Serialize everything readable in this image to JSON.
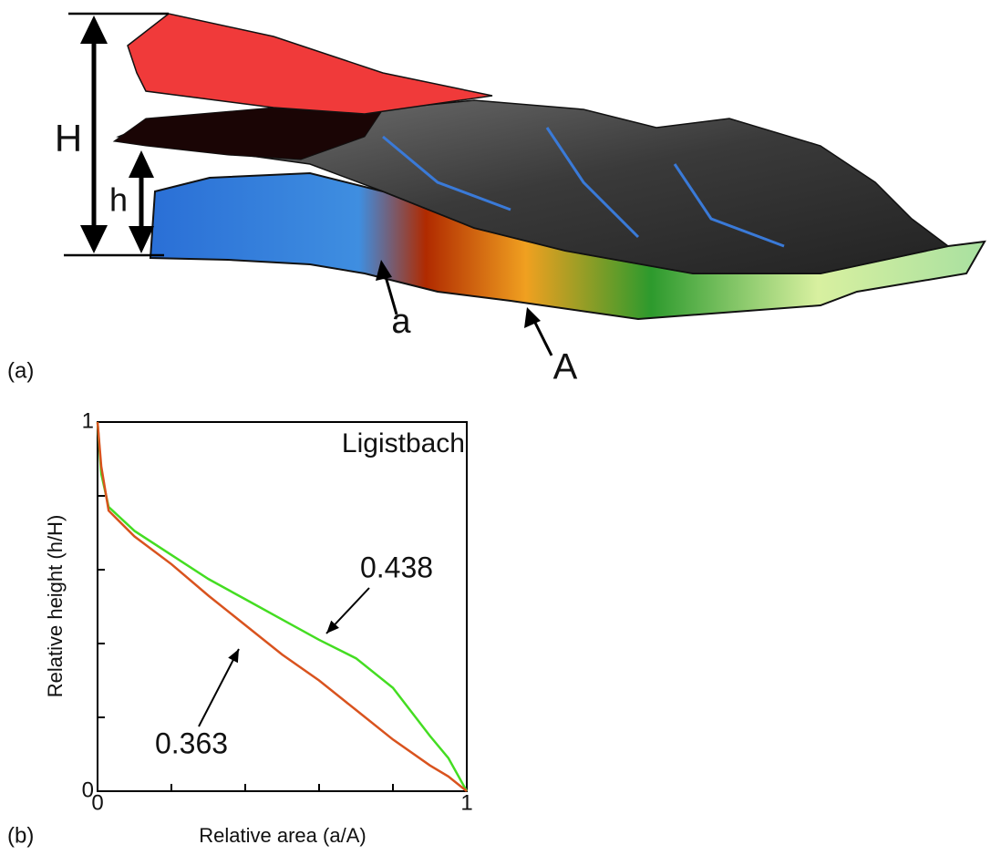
{
  "panel_a": {
    "label": "(a)",
    "annotations": [
      "H",
      "h",
      "a",
      "A"
    ]
  },
  "panel_b_label": "(b)",
  "chart_data": {
    "type": "line",
    "title": "Ligistbach",
    "x_label": "Relative area (a/A)",
    "y_label": "Relative height (h/H)",
    "x": [
      0,
      0.01,
      0.03,
      0.1,
      0.2,
      0.3,
      0.4,
      0.5,
      0.6,
      0.7,
      0.8,
      0.9,
      0.95,
      1
    ],
    "series": [
      {
        "color": "#44dd22",
        "values": [
          1,
          0.86,
          0.77,
          0.705,
          0.64,
          0.575,
          0.52,
          0.465,
          0.41,
          0.36,
          0.28,
          0.15,
          0.09,
          0
        ]
      },
      {
        "color": "#d9531e",
        "values": [
          1,
          0.88,
          0.76,
          0.69,
          0.615,
          0.53,
          0.45,
          0.37,
          0.3,
          0.22,
          0.14,
          0.07,
          0.04,
          0
        ]
      }
    ],
    "annotations": [
      "0.438",
      "0.363"
    ],
    "xlim": [
      0,
      1
    ],
    "ylim": [
      0,
      1
    ],
    "xticks": [
      0,
      1
    ],
    "yticks": [
      0,
      1
    ],
    "minor_xticks": [
      0.2,
      0.4,
      0.6,
      0.8
    ],
    "minor_yticks": [
      0.2,
      0.4,
      0.6,
      0.8
    ]
  }
}
